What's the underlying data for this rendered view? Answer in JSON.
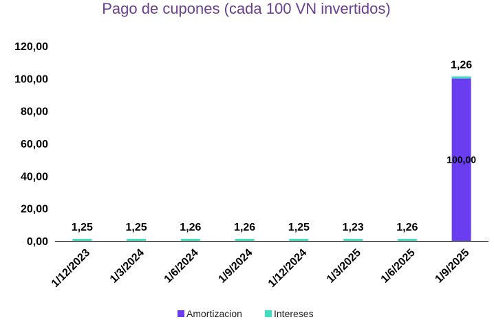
{
  "chart_data": {
    "type": "bar",
    "stacked": true,
    "title": "Pago de cupones (cada 100 VN invertidos)",
    "categories": [
      "1/12/2023",
      "1/3/2024",
      "1/6/2024",
      "1/9/2024",
      "1/12/2024",
      "1/3/2025",
      "1/6/2025",
      "1/9/2025"
    ],
    "series": [
      {
        "name": "Amortizacion",
        "color": "#6a3df0",
        "values": [
          0,
          0,
          0,
          0,
          0,
          0,
          0,
          100
        ],
        "labels": [
          "",
          "",
          "",
          "",
          "",
          "",
          "",
          "100,00"
        ]
      },
      {
        "name": "Intereses",
        "color": "#3ee0c0",
        "values": [
          1.25,
          1.25,
          1.26,
          1.26,
          1.25,
          1.23,
          1.26,
          1.26
        ],
        "labels": [
          "1,25",
          "1,25",
          "1,26",
          "1,26",
          "1,25",
          "1,23",
          "1,26",
          "1,26"
        ]
      }
    ],
    "ylim": [
      0,
      120
    ],
    "yticks": [
      "0,00",
      "20,00",
      "40,00",
      "60,00",
      "80,00",
      "100,00",
      "120,00"
    ],
    "grid": false,
    "legend_position": "bottom"
  }
}
